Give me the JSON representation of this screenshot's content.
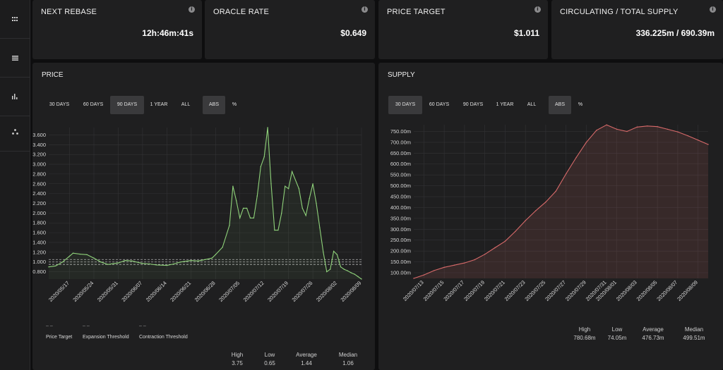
{
  "sidebar": {
    "items": [
      {
        "icon": "grid-icon"
      },
      {
        "icon": "list-icon"
      },
      {
        "icon": "bar-chart-icon"
      },
      {
        "icon": "network-icon"
      }
    ]
  },
  "stats": [
    {
      "label": "NEXT REBASE",
      "value": "12h:46m:41s"
    },
    {
      "label": "ORACLE RATE",
      "value": "$0.649"
    },
    {
      "label": "PRICE TARGET",
      "value": "$1.011"
    },
    {
      "label": "CIRCULATING / TOTAL SUPPLY",
      "value": "336.225m / 690.39m"
    }
  ],
  "info_glyph": "i",
  "price_panel": {
    "title": "PRICE",
    "range_buttons": [
      "30 DAYS",
      "60 DAYS",
      "90 DAYS",
      "1 YEAR",
      "ALL"
    ],
    "active_range": "90 DAYS",
    "mode_buttons": [
      "ABS",
      "%"
    ],
    "active_mode": "ABS",
    "legend": [
      {
        "symbol": "– –",
        "label": "Price Target"
      },
      {
        "symbol": "– –",
        "label": "Expansion Threshold"
      },
      {
        "symbol": "– –",
        "label": "Contraction Threshold"
      }
    ],
    "summary": {
      "headers": [
        "High",
        "Low",
        "Average",
        "Median"
      ],
      "values": [
        "3.75",
        "0.65",
        "1.44",
        "1.06"
      ]
    }
  },
  "supply_panel": {
    "title": "SUPPLY",
    "range_buttons": [
      "30 DAYS",
      "60 DAYS",
      "90 DAYS",
      "1 YEAR",
      "ALL"
    ],
    "active_range": "30 DAYS",
    "mode_buttons": [
      "ABS",
      "%"
    ],
    "active_mode": "ABS",
    "summary": {
      "headers": [
        "High",
        "Low",
        "Average",
        "Median"
      ],
      "values": [
        "780.68m",
        "74.05m",
        "476.73m",
        "499.51m"
      ]
    }
  },
  "chart_data": [
    {
      "type": "line",
      "title": "PRICE",
      "color": "#8fd27a",
      "xlabel": "",
      "ylabel": "",
      "x_tick_labels": [
        "2020/05/17",
        "2020/05/24",
        "2020/05/31",
        "2020/06/07",
        "2020/06/14",
        "2020/06/21",
        "2020/06/28",
        "2020/07/05",
        "2020/07/12",
        "2020/07/19",
        "2020/07/26",
        "2020/08/02",
        "2020/08/09"
      ],
      "y_tick_labels": [
        "$0.800",
        "$1.000",
        "$1.200",
        "$1.400",
        "$1.600",
        "$1.800",
        "$2.000",
        "$2.200",
        "$2.400",
        "$2.600",
        "$2.800",
        "$3.000",
        "$3.200",
        "$3.400",
        "$3.600"
      ],
      "ylim": [
        0.65,
        3.75
      ],
      "grid": true,
      "reference_lines": [
        {
          "name": "Price Target",
          "value": 1.0
        },
        {
          "name": "Expansion Threshold",
          "value": 1.05
        },
        {
          "name": "Contraction Threshold",
          "value": 0.95
        }
      ],
      "points": [
        [
          "2020/05/11",
          0.9
        ],
        [
          "2020/05/13",
          0.92
        ],
        [
          "2020/05/15",
          1.0
        ],
        [
          "2020/05/17",
          1.12
        ],
        [
          "2020/05/18",
          1.18
        ],
        [
          "2020/05/20",
          1.16
        ],
        [
          "2020/05/22",
          1.15
        ],
        [
          "2020/05/24",
          1.08
        ],
        [
          "2020/05/26",
          1.0
        ],
        [
          "2020/05/28",
          0.95
        ],
        [
          "2020/05/31",
          0.98
        ],
        [
          "2020/06/02",
          1.03
        ],
        [
          "2020/06/04",
          1.02
        ],
        [
          "2020/06/07",
          0.97
        ],
        [
          "2020/06/09",
          0.96
        ],
        [
          "2020/06/11",
          0.94
        ],
        [
          "2020/06/14",
          0.93
        ],
        [
          "2020/06/16",
          0.96
        ],
        [
          "2020/06/18",
          1.0
        ],
        [
          "2020/06/21",
          1.03
        ],
        [
          "2020/06/23",
          1.02
        ],
        [
          "2020/06/25",
          1.05
        ],
        [
          "2020/06/27",
          1.08
        ],
        [
          "2020/06/28",
          1.15
        ],
        [
          "2020/06/30",
          1.3
        ],
        [
          "2020/07/02",
          1.75
        ],
        [
          "2020/07/03",
          2.55
        ],
        [
          "2020/07/04",
          2.25
        ],
        [
          "2020/07/05",
          1.9
        ],
        [
          "2020/07/06",
          2.1
        ],
        [
          "2020/07/07",
          2.1
        ],
        [
          "2020/07/08",
          1.9
        ],
        [
          "2020/07/09",
          1.9
        ],
        [
          "2020/07/10",
          2.35
        ],
        [
          "2020/07/11",
          2.95
        ],
        [
          "2020/07/12",
          3.15
        ],
        [
          "2020/07/13",
          3.75
        ],
        [
          "2020/07/14",
          2.6
        ],
        [
          "2020/07/15",
          1.65
        ],
        [
          "2020/07/16",
          1.65
        ],
        [
          "2020/07/17",
          2.0
        ],
        [
          "2020/07/18",
          2.55
        ],
        [
          "2020/07/19",
          2.5
        ],
        [
          "2020/07/20",
          2.85
        ],
        [
          "2020/07/22",
          2.5
        ],
        [
          "2020/07/23",
          2.1
        ],
        [
          "2020/07/24",
          1.95
        ],
        [
          "2020/07/25",
          2.3
        ],
        [
          "2020/07/26",
          2.6
        ],
        [
          "2020/07/27",
          2.2
        ],
        [
          "2020/07/28",
          1.7
        ],
        [
          "2020/07/29",
          1.2
        ],
        [
          "2020/07/30",
          0.8
        ],
        [
          "2020/07/31",
          0.85
        ],
        [
          "2020/08/01",
          1.22
        ],
        [
          "2020/08/02",
          1.15
        ],
        [
          "2020/08/03",
          0.9
        ],
        [
          "2020/08/04",
          0.85
        ],
        [
          "2020/08/05",
          0.82
        ],
        [
          "2020/08/06",
          0.78
        ],
        [
          "2020/08/07",
          0.75
        ],
        [
          "2020/08/08",
          0.7
        ],
        [
          "2020/08/09",
          0.65
        ]
      ]
    },
    {
      "type": "area",
      "title": "SUPPLY",
      "color": "#d86a6a",
      "xlabel": "",
      "ylabel": "",
      "x_tick_labels": [
        "2020/07/13",
        "2020/07/15",
        "2020/07/17",
        "2020/07/19",
        "2020/07/21",
        "2020/07/23",
        "2020/07/25",
        "2020/07/27",
        "2020/07/29",
        "2020/07/31",
        "2020/08/01",
        "2020/08/03",
        "2020/08/05",
        "2020/08/07",
        "2020/08/09"
      ],
      "y_tick_labels": [
        "100.00m",
        "150.00m",
        "200.00m",
        "250.00m",
        "300.00m",
        "350.00m",
        "400.00m",
        "450.00m",
        "500.00m",
        "550.00m",
        "600.00m",
        "650.00m",
        "700.00m",
        "750.00m"
      ],
      "ylim": [
        74.05,
        780.68
      ],
      "grid": true,
      "points": [
        [
          "2020/07/12",
          74
        ],
        [
          "2020/07/13",
          90
        ],
        [
          "2020/07/14",
          110
        ],
        [
          "2020/07/15",
          125
        ],
        [
          "2020/07/16",
          135
        ],
        [
          "2020/07/17",
          145
        ],
        [
          "2020/07/18",
          160
        ],
        [
          "2020/07/19",
          185
        ],
        [
          "2020/07/20",
          215
        ],
        [
          "2020/07/21",
          245
        ],
        [
          "2020/07/22",
          290
        ],
        [
          "2020/07/23",
          340
        ],
        [
          "2020/07/24",
          385
        ],
        [
          "2020/07/25",
          425
        ],
        [
          "2020/07/26",
          475
        ],
        [
          "2020/07/27",
          555
        ],
        [
          "2020/07/28",
          630
        ],
        [
          "2020/07/29",
          700
        ],
        [
          "2020/07/30",
          755
        ],
        [
          "2020/07/31",
          780
        ],
        [
          "2020/08/01",
          760
        ],
        [
          "2020/08/02",
          750
        ],
        [
          "2020/08/03",
          770
        ],
        [
          "2020/08/04",
          775
        ],
        [
          "2020/08/05",
          772
        ],
        [
          "2020/08/06",
          760
        ],
        [
          "2020/08/07",
          748
        ],
        [
          "2020/08/08",
          730
        ],
        [
          "2020/08/09",
          710
        ],
        [
          "2020/08/10",
          690
        ]
      ]
    }
  ]
}
